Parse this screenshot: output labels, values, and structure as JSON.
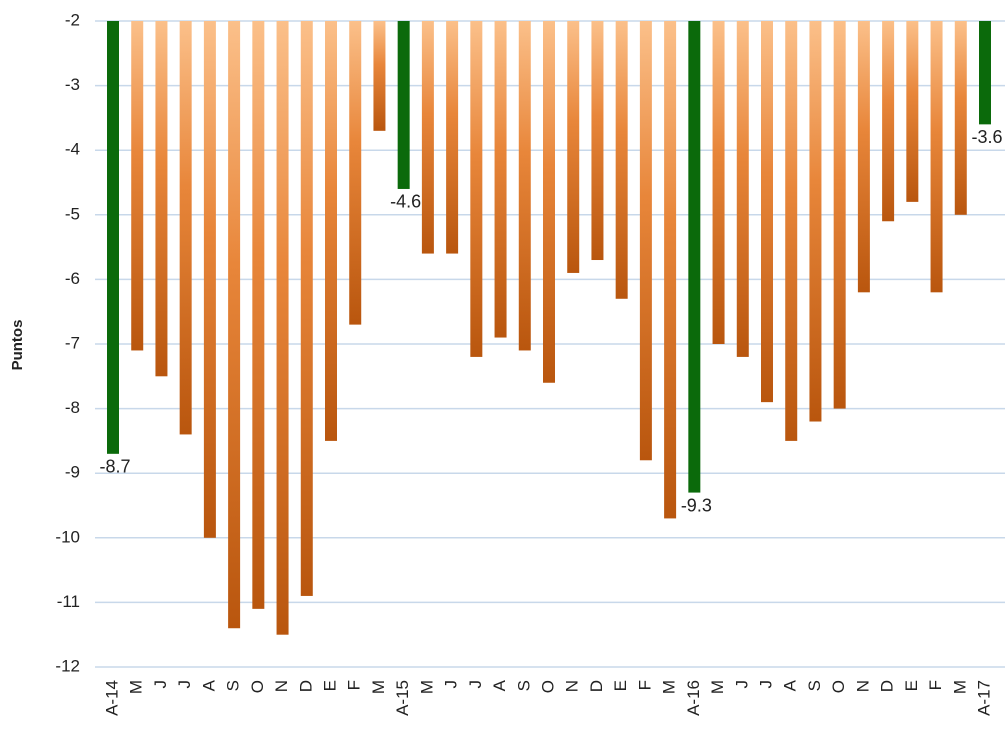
{
  "chart_data": {
    "type": "bar",
    "y_label": "Puntos",
    "categories": [
      "A-14",
      "M",
      "J",
      "J",
      "A",
      "S",
      "O",
      "N",
      "D",
      "E",
      "F",
      "M",
      "A-15",
      "M",
      "J",
      "J",
      "A",
      "S",
      "O",
      "N",
      "D",
      "E",
      "F",
      "M",
      "A-16",
      "M",
      "J",
      "J",
      "A",
      "S",
      "O",
      "N",
      "D",
      "E",
      "F",
      "M",
      "A-17"
    ],
    "values": [
      -8.7,
      -7.1,
      -7.5,
      -8.4,
      -10.0,
      -11.4,
      -11.1,
      -11.5,
      -10.9,
      -8.5,
      -6.7,
      -3.7,
      -4.6,
      -5.6,
      -5.6,
      -7.2,
      -6.9,
      -7.1,
      -7.6,
      -5.9,
      -5.7,
      -6.3,
      -8.8,
      -9.7,
      -9.3,
      -7.0,
      -7.2,
      -7.9,
      -8.5,
      -8.2,
      -8.0,
      -6.2,
      -5.1,
      -4.8,
      -6.2,
      -5.0,
      -3.6
    ],
    "color": "#e8863a",
    "colors": [
      "#0b6a0b",
      "#e8863a",
      "#e8863a",
      "#e8863a",
      "#e8863a",
      "#e8863a",
      "#e8863a",
      "#e8863a",
      "#e8863a",
      "#e8863a",
      "#e8863a",
      "#e8863a",
      "#0b6a0b",
      "#e8863a",
      "#e8863a",
      "#e8863a",
      "#e8863a",
      "#e8863a",
      "#e8863a",
      "#e8863a",
      "#e8863a",
      "#e8863a",
      "#e8863a",
      "#e8863a",
      "#0b6a0b",
      "#e8863a",
      "#e8863a",
      "#e8863a",
      "#e8863a",
      "#e8863a",
      "#e8863a",
      "#e8863a",
      "#e8863a",
      "#e8863a",
      "#e8863a",
      "#e8863a",
      "#0b6a0b"
    ],
    "ylim": [
      -12,
      -2
    ],
    "yticks": [
      -2,
      -3,
      -4,
      -5,
      -6,
      -7,
      -8,
      -9,
      -10,
      -11,
      -12
    ],
    "grid": true
  }
}
